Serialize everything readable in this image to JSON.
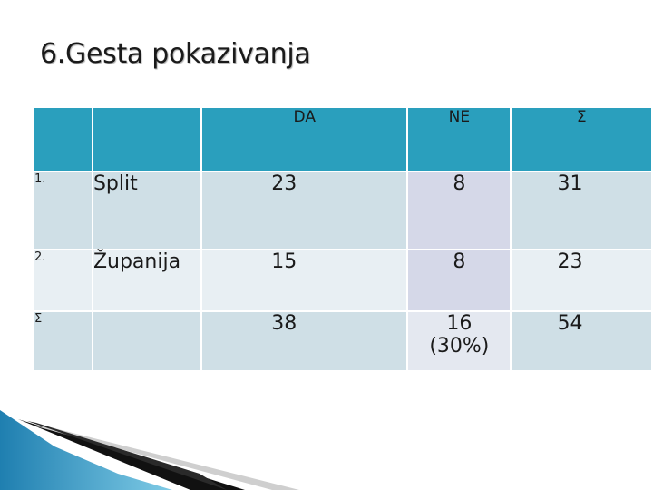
{
  "title": "6.Gesta pokazivanja",
  "table": {
    "headers": [
      "",
      "",
      "DA",
      "NE",
      "Σ"
    ],
    "rows": [
      {
        "num": "1.",
        "name": "Split",
        "da": "23",
        "ne": "8",
        "sum": "31"
      },
      {
        "num": "2.",
        "name": "Županija",
        "da": "15",
        "ne": "8",
        "sum": "23"
      },
      {
        "num": "Σ",
        "name": "",
        "da": "38",
        "ne_line1": "16",
        "ne_line2": "(30%)",
        "sum": "54"
      }
    ]
  },
  "colors": {
    "header": "#2a9fbd",
    "row_odd": "#cfdfe6",
    "row_even": "#e8eff3",
    "ne_column": "#d5d8e8"
  }
}
